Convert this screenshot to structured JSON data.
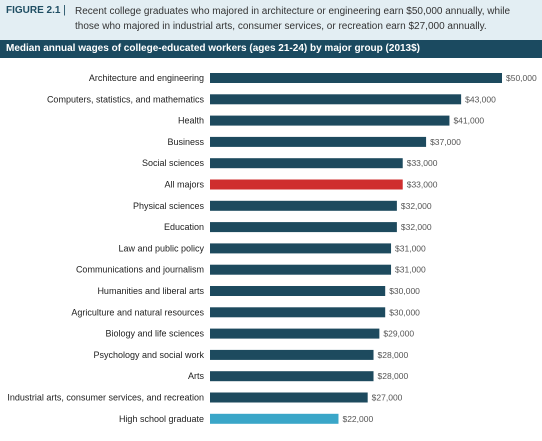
{
  "caption": {
    "figure_label": "FIGURE 2.1",
    "separator": "|",
    "text": "Recent college graduates who majored in architecture or engineering earn $50,000 annually, while those who majored in industrial arts, consumer services, or recreation earn $27,000 annually."
  },
  "chart_data": {
    "type": "bar",
    "orientation": "horizontal",
    "title": "Median annual wages of college-educated workers (ages 21-24) by major group (2013$)",
    "categories": [
      "Architecture and engineering",
      "Computers, statistics, and mathematics",
      "Health",
      "Business",
      "Social sciences",
      "All majors",
      "Physical sciences",
      "Education",
      "Law and public policy",
      "Communications and journalism",
      "Humanities and liberal arts",
      "Agriculture and natural resources",
      "Biology and life sciences",
      "Psychology and social work",
      "Arts",
      "Industrial arts, consumer services, and recreation",
      "High school graduate"
    ],
    "values": [
      50000,
      43000,
      41000,
      37000,
      33000,
      33000,
      32000,
      32000,
      31000,
      31000,
      30000,
      30000,
      29000,
      28000,
      28000,
      27000,
      22000
    ],
    "value_labels": [
      "$50,000",
      "$43,000",
      "$41,000",
      "$37,000",
      "$33,000",
      "$33,000",
      "$32,000",
      "$32,000",
      "$31,000",
      "$31,000",
      "$30,000",
      "$30,000",
      "$29,000",
      "$28,000",
      "$28,000",
      "$27,000",
      "$22,000"
    ],
    "bar_colors": [
      "#1d4a5e",
      "#1d4a5e",
      "#1d4a5e",
      "#1d4a5e",
      "#1d4a5e",
      "#cf2e2e",
      "#1d4a5e",
      "#1d4a5e",
      "#1d4a5e",
      "#1d4a5e",
      "#1d4a5e",
      "#1d4a5e",
      "#1d4a5e",
      "#1d4a5e",
      "#1d4a5e",
      "#1d4a5e",
      "#3aa6c8"
    ],
    "xlim": [
      0,
      50000
    ],
    "grid": false,
    "legend": "none"
  },
  "colors": {
    "caption_background": "#e3eef3",
    "title_bar": "#1b4a60",
    "bar_default": "#1d4a5e",
    "bar_highlight": "#cf2e2e",
    "bar_comparison": "#3aa6c8"
  }
}
